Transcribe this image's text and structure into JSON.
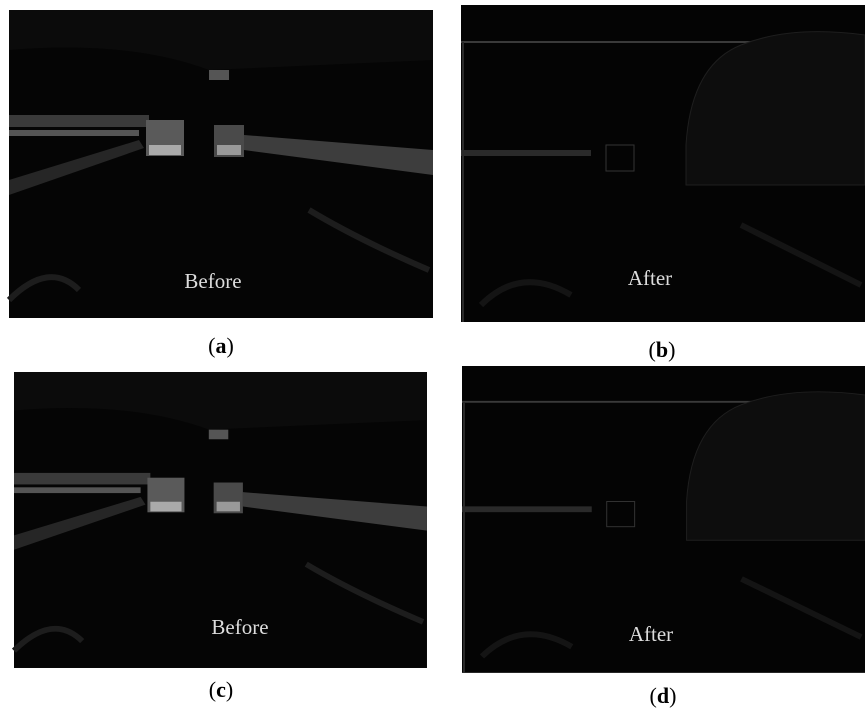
{
  "panels": [
    {
      "image_label": "Before",
      "caption": [
        "(",
        "a",
        ")"
      ]
    },
    {
      "image_label": "After",
      "caption": [
        "(",
        "b",
        ")"
      ]
    },
    {
      "image_label": "Before",
      "caption": [
        "(",
        "c",
        ")"
      ]
    },
    {
      "image_label": "After",
      "caption": [
        "(",
        "d",
        ")"
      ]
    }
  ]
}
